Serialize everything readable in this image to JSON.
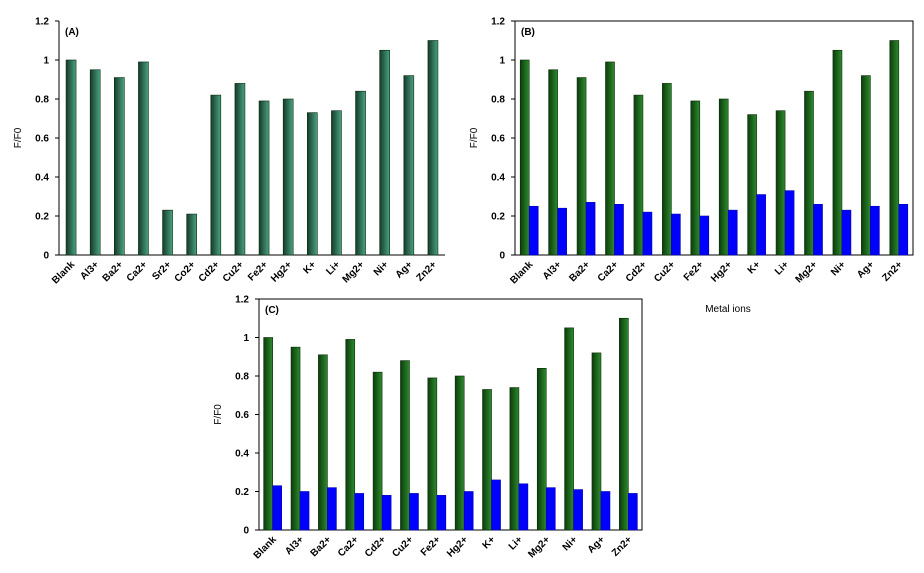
{
  "colors": {
    "green_dark": "#0b3d0b",
    "green_light": "#2e8b2e",
    "teal_dark": "#163a2c",
    "teal_light": "#4aa383",
    "blue": "#0000ff",
    "axis": "#000000"
  },
  "chart_data": [
    {
      "id": "A",
      "type": "bar",
      "panel_label": "(A)",
      "ylabel": "F/F0",
      "xlabel": "",
      "ylim": [
        0,
        1.2
      ],
      "yticks": [
        "0",
        "0.2",
        "0.4",
        "0.6",
        "0.8",
        "1",
        "1.2"
      ],
      "framed": false,
      "categories": [
        "Blank",
        "Al3+",
        "Ba2+",
        "Ca2+",
        "Sr2+",
        "Co2+",
        "Cd2+",
        "Cu2+",
        "Fe2+",
        "Hg2+",
        "K+",
        "Li+",
        "Mg2+",
        "Ni+",
        "Ag+",
        "Zn2+"
      ],
      "series": [
        {
          "values": [
            1.0,
            0.95,
            0.91,
            0.99,
            0.23,
            0.21,
            0.82,
            0.88,
            0.79,
            0.8,
            0.73,
            0.74,
            0.84,
            1.05,
            0.92,
            1.1
          ],
          "color": "teal"
        }
      ]
    },
    {
      "id": "B",
      "type": "bar",
      "panel_label": "(B)",
      "ylabel": "F/F0",
      "xlabel": "Metal ions",
      "ylim": [
        0,
        1.2
      ],
      "yticks": [
        "0",
        "0.2",
        "0.4",
        "0.6",
        "0.8",
        "1",
        "1.2"
      ],
      "framed": true,
      "categories": [
        "Blank",
        "Al3+",
        "Ba2+",
        "Ca2+",
        "Cd2+",
        "Cu2+",
        "Fe2+",
        "Hg2+",
        "K+",
        "Li+",
        "Mg2+",
        "Ni+",
        "Ag+",
        "Zn2+"
      ],
      "series": [
        {
          "values": [
            1.0,
            0.95,
            0.91,
            0.99,
            0.82,
            0.88,
            0.79,
            0.8,
            0.72,
            0.74,
            0.84,
            1.05,
            0.92,
            1.1
          ],
          "color": "green"
        },
        {
          "values": [
            0.25,
            0.24,
            0.27,
            0.26,
            0.22,
            0.21,
            0.2,
            0.23,
            0.31,
            0.33,
            0.26,
            0.23,
            0.25,
            0.26
          ],
          "color": "blue"
        }
      ]
    },
    {
      "id": "C",
      "type": "bar",
      "panel_label": "(C)",
      "ylabel": "F/F0",
      "xlabel": "",
      "ylim": [
        0,
        1.2
      ],
      "yticks": [
        "0",
        "0.2",
        "0.4",
        "0.6",
        "0.8",
        "1",
        "1.2"
      ],
      "framed": true,
      "categories": [
        "Blank",
        "Al3+",
        "Ba2+",
        "Ca2+",
        "Cd2+",
        "Cu2+",
        "Fe2+",
        "Hg2+",
        "K+",
        "Li+",
        "Mg2+",
        "Ni+",
        "Ag+",
        "Zn2+"
      ],
      "series": [
        {
          "values": [
            1.0,
            0.95,
            0.91,
            0.99,
            0.82,
            0.88,
            0.79,
            0.8,
            0.73,
            0.74,
            0.84,
            1.05,
            0.92,
            1.1
          ],
          "color": "green"
        },
        {
          "values": [
            0.23,
            0.2,
            0.22,
            0.19,
            0.18,
            0.19,
            0.18,
            0.2,
            0.26,
            0.24,
            0.22,
            0.21,
            0.2,
            0.19
          ],
          "color": "blue"
        }
      ]
    }
  ]
}
